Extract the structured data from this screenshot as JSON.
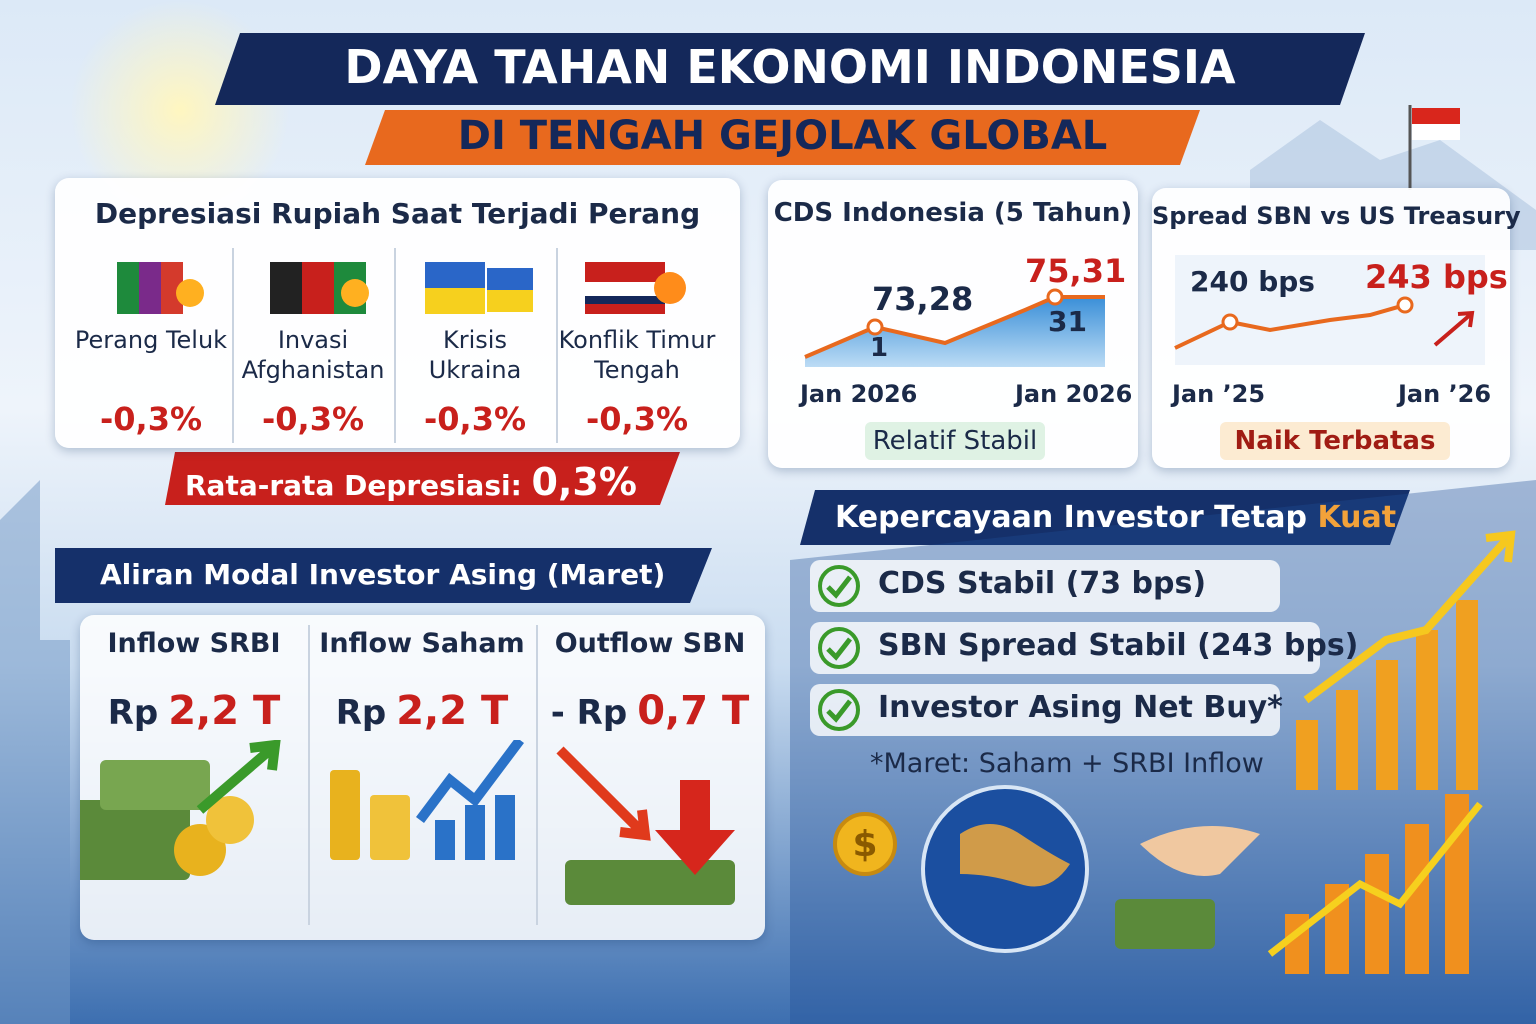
{
  "header": {
    "title": "DAYA TAHAN EKONOMI INDONESIA",
    "subtitle": "DI TENGAH GEJOLAK GLOBAL"
  },
  "depreciation": {
    "title": "Depresiasi Rupiah Saat Terjadi Perang",
    "events": [
      {
        "name": "Perang Teluk",
        "value": "-0,3%"
      },
      {
        "name": "Invasi Afghanistan",
        "value": "-0,3%"
      },
      {
        "name": "Krisis Ukraina",
        "value": "-0,3%"
      },
      {
        "name": "Konflik Timur Tengah",
        "value": "-0,3%"
      }
    ],
    "average_label": "Rata-rata Depresiasi:",
    "average_value": "0,3%"
  },
  "cds": {
    "title": "CDS Indonesia (5 Tahun)",
    "start_value": "73,28",
    "end_value": "75,31",
    "marker_labels": [
      "1",
      "31"
    ],
    "x_labels": [
      "Jan 2026",
      "Jan 2026"
    ],
    "note": "Relatif Stabil"
  },
  "spread": {
    "title": "Spread SBN vs US Treasury",
    "start_value": "240 bps",
    "end_value": "243 bps",
    "x_labels": [
      "Jan ’25",
      "Jan ’26"
    ],
    "note": "Naik Terbatas"
  },
  "capital": {
    "title": "Aliran Modal Investor Asing (Maret)",
    "items": [
      {
        "label": "Inflow SRBI",
        "prefix": "Rp",
        "amount": "2,2 T"
      },
      {
        "label": "Inflow Saham",
        "prefix": "Rp",
        "amount": "2,2 T"
      },
      {
        "label": "Outflow SBN",
        "prefix": "- Rp",
        "amount": "0,7 T"
      }
    ]
  },
  "investor": {
    "title": "Kepercayaan Investor Tetap",
    "title_highlight": "Kuat",
    "checks": [
      "CDS Stabil (73 bps)",
      "SBN Spread Stabil (243 bps)",
      "Investor Asing Net Buy*"
    ],
    "footnote": "*Maret: Saham + SRBI Inflow",
    "coin_symbol": "$"
  }
}
